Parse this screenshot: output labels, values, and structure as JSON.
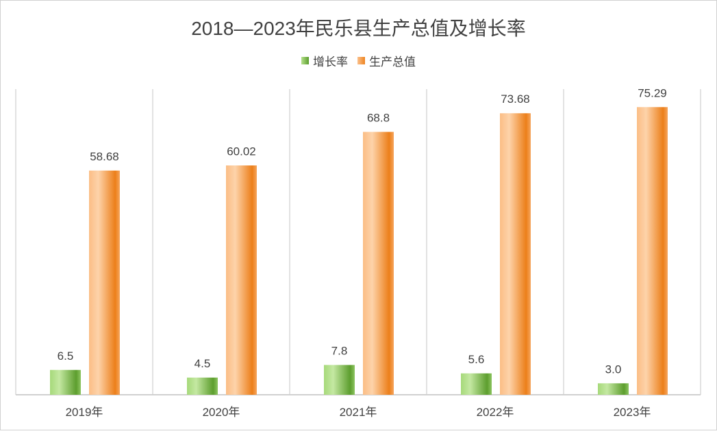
{
  "chart_data": {
    "type": "bar",
    "title": "2018—2023年民乐县生产总值及增长率",
    "categories": [
      "2019年",
      "2020年",
      "2021年",
      "2022年",
      "2023年"
    ],
    "series": [
      {
        "name": "增长率",
        "values": [
          6.5,
          4.5,
          7.8,
          5.6,
          3.0
        ],
        "labels": [
          "6.5",
          "4.5",
          "7.8",
          "5.6",
          "3.0"
        ],
        "color": "#6aaa3a"
      },
      {
        "name": "生产总值",
        "values": [
          58.68,
          60.02,
          68.8,
          73.68,
          75.29
        ],
        "labels": [
          "58.68",
          "60.02",
          "68.8",
          "73.68",
          "75.29"
        ],
        "color": "#ee8a2a"
      }
    ],
    "xlabel": "",
    "ylabel": "",
    "ylim": [
      0,
      80
    ],
    "grid": "vertical separators",
    "legend": "top-center"
  }
}
